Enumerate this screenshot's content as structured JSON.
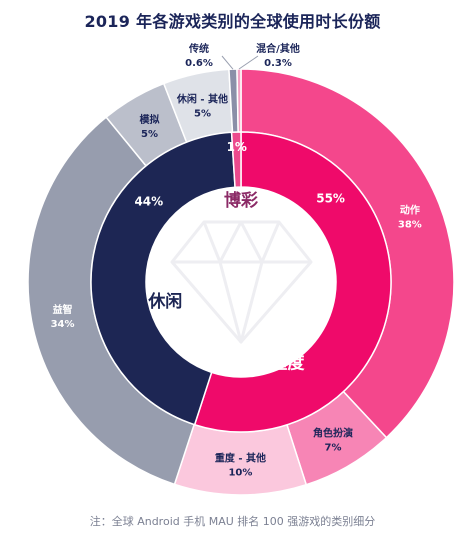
{
  "title": "2019 年各游戏类别的全球使用时长份额",
  "note": "注：全球 Android 手机 MAU 排名 100 强游戏的类别细分",
  "chart_data": {
    "type": "pie",
    "title": "2019 年各游戏类别的全球使用时长份额",
    "inner_ring": [
      {
        "name": "重度",
        "value": 55,
        "label": "55%",
        "color": "#ef0a6a"
      },
      {
        "name": "休闲",
        "value": 44,
        "label": "44%",
        "color": "#1d2654"
      },
      {
        "name": "博彩",
        "value": 1,
        "label": "1%",
        "color": "#ec4a8d"
      }
    ],
    "outer_ring": [
      {
        "name": "动作",
        "value": 38,
        "label": "38%",
        "color": "#f4478c",
        "group": "重度"
      },
      {
        "name": "角色扮演",
        "value": 7,
        "label": "7%",
        "color": "#f785b5",
        "group": "重度"
      },
      {
        "name": "重度 - 其他",
        "value": 10,
        "label": "10%",
        "color": "#fbc8dd",
        "group": "重度"
      },
      {
        "name": "益智",
        "value": 34,
        "label": "34%",
        "color": "#979dae",
        "group": "休闲"
      },
      {
        "name": "模拟",
        "value": 5,
        "label": "5%",
        "color": "#bbbfcb",
        "group": "休闲"
      },
      {
        "name": "休闲 - 其他",
        "value": 5,
        "label": "5%",
        "color": "#dfe2e8",
        "group": "休闲"
      },
      {
        "name": "传统",
        "value": 0.6,
        "label": "0.6%",
        "color": "#8b8fa8",
        "group": "博彩"
      },
      {
        "name": "混合/其他",
        "value": 0.3,
        "label": "0.3%",
        "color": "#f3a2c4",
        "group": "博彩"
      }
    ]
  }
}
